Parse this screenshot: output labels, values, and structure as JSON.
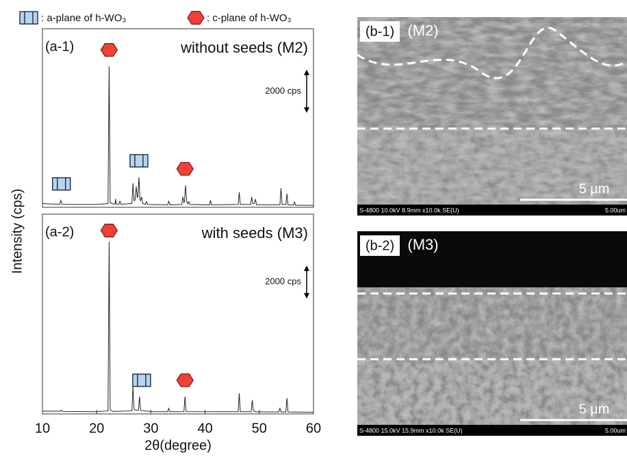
{
  "legend": [
    {
      "label": ": a-plane of h-WO₃"
    },
    {
      "label": ": c-plane of h-WO₃"
    }
  ],
  "figure": {
    "ylabel": "Intensity (cps)",
    "xlabel": "2θ(degree)"
  },
  "chart_data": [
    {
      "type": "line",
      "title": "(a-1)",
      "annotation": "without seeds (M2)",
      "color": "#222222",
      "xlim": [
        10,
        60
      ],
      "ylim": [
        0,
        9500
      ],
      "scale_bar": {
        "value": 2000,
        "label": "2000 cps"
      },
      "a_plane_peaks": [
        13.5,
        27.8
      ],
      "c_plane_peaks": [
        22.3,
        36.3
      ],
      "x": [
        10,
        12,
        13.2,
        13.4,
        13.6,
        16,
        20,
        22.1,
        22.3,
        22.5,
        23,
        23.4,
        23.5,
        23.6,
        24.1,
        24.3,
        24.5,
        26.5,
        26.7,
        26.9,
        27.1,
        27.3,
        27.5,
        27.6,
        27.8,
        28.0,
        28.1,
        28.3,
        28.5,
        29,
        29.2,
        29.4,
        33.1,
        33.3,
        33.5,
        35.7,
        35.9,
        36.1,
        36.2,
        36.4,
        36.6,
        36.8,
        37,
        37.2,
        40.8,
        41,
        41.2,
        46.1,
        46.3,
        46.5,
        48.4,
        48.6,
        48.8,
        49.1,
        49.3,
        49.5,
        53.8,
        54,
        54.2,
        54.9,
        55.1,
        55.3,
        56.3,
        56.5,
        56.7,
        58,
        60
      ],
      "values": [
        200,
        170,
        170,
        370,
        160,
        150,
        150,
        200,
        7500,
        250,
        180,
        170,
        450,
        170,
        160,
        320,
        160,
        200,
        1280,
        350,
        400,
        1100,
        500,
        600,
        1600,
        400,
        350,
        550,
        200,
        160,
        300,
        150,
        130,
        320,
        130,
        150,
        550,
        250,
        300,
        1170,
        300,
        180,
        300,
        150,
        130,
        370,
        130,
        150,
        800,
        150,
        150,
        550,
        200,
        200,
        440,
        130,
        130,
        1020,
        150,
        150,
        730,
        130,
        120,
        280,
        110,
        110,
        100
      ]
    },
    {
      "type": "line",
      "title": "(a-2)",
      "annotation": "with seeds (M3)",
      "color": "#222222",
      "xlim": [
        10,
        60
      ],
      "ylim": [
        0,
        14500
      ],
      "xticks": [
        10,
        20,
        30,
        40,
        50,
        60
      ],
      "scale_bar": {
        "value": 2000,
        "label": "2000 cps"
      },
      "a_plane_peaks": [
        28.3
      ],
      "c_plane_peaks": [
        22.3,
        36.3
      ],
      "x": [
        10,
        13.3,
        13.5,
        13.7,
        20,
        22.1,
        22.3,
        22.5,
        23,
        26.5,
        26.7,
        26.9,
        27.7,
        27.9,
        28.1,
        30,
        33.1,
        33.3,
        33.5,
        36.1,
        36.3,
        36.5,
        46.1,
        46.3,
        46.5,
        48.5,
        48.7,
        48.9,
        49.3,
        53.6,
        53.8,
        54,
        54.9,
        55.1,
        55.3,
        60
      ],
      "values": [
        200,
        200,
        280,
        180,
        160,
        220,
        12500,
        300,
        180,
        220,
        2000,
        300,
        250,
        1250,
        250,
        170,
        160,
        400,
        160,
        170,
        1250,
        170,
        160,
        1500,
        160,
        160,
        1000,
        250,
        150,
        140,
        400,
        140,
        140,
        1150,
        140,
        120
      ]
    }
  ],
  "sem_images": [
    {
      "label": "(b-1)",
      "sample": "(M2)",
      "scale": "5 µm",
      "info": "S-4800 10.0kV 8.9mm x10.0k SE(U)",
      "scale_text": "5.00um"
    },
    {
      "label": "(b-2)",
      "sample": "(M3)",
      "scale": "5 µm",
      "info": "S-4800 15.0kV 15.9mm x10.0k SE(U)",
      "scale_text": "5.00um"
    }
  ]
}
